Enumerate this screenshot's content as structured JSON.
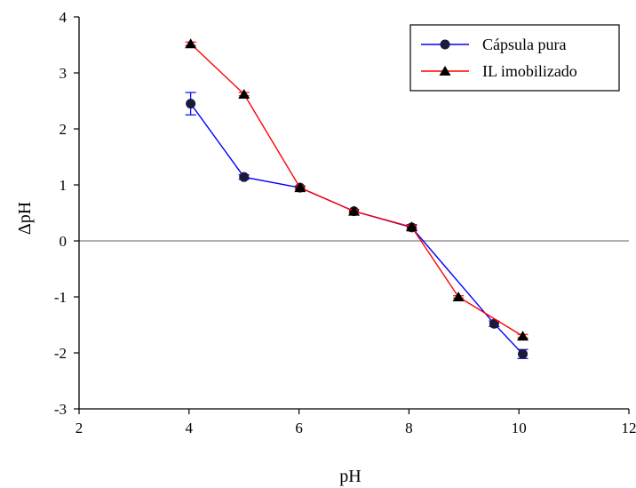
{
  "chart_data": {
    "type": "line",
    "xlabel": "pH",
    "ylabel": "ΔpH",
    "xlim": [
      2,
      12
    ],
    "ylim": [
      -3,
      4
    ],
    "xticks": [
      2,
      4,
      6,
      8,
      10,
      12
    ],
    "yticks": [
      -3,
      -2,
      -1,
      0,
      1,
      2,
      3,
      4
    ],
    "legend_position": "top-right",
    "grid": false,
    "zero_line": true,
    "series": [
      {
        "name": "Cápsula pura",
        "color": "#0000ff",
        "marker": "circle",
        "x": [
          4.03,
          5.0,
          6.02,
          7.0,
          8.05,
          9.55,
          10.07
        ],
        "y": [
          2.45,
          1.14,
          0.95,
          0.53,
          0.24,
          -1.48,
          -2.02
        ],
        "error": [
          0.2,
          0.04,
          0.03,
          0.03,
          0.05,
          0.05,
          0.08
        ]
      },
      {
        "name": "IL imobilizado",
        "color": "#ff0000",
        "marker": "triangle",
        "x": [
          4.03,
          5.0,
          6.02,
          7.0,
          8.05,
          8.9,
          10.07
        ],
        "y": [
          3.52,
          2.62,
          0.95,
          0.53,
          0.25,
          -1.0,
          -1.7
        ],
        "error": [
          0.03,
          0.03,
          0.03,
          0.03,
          0.03,
          0.02,
          0.03
        ]
      }
    ]
  }
}
